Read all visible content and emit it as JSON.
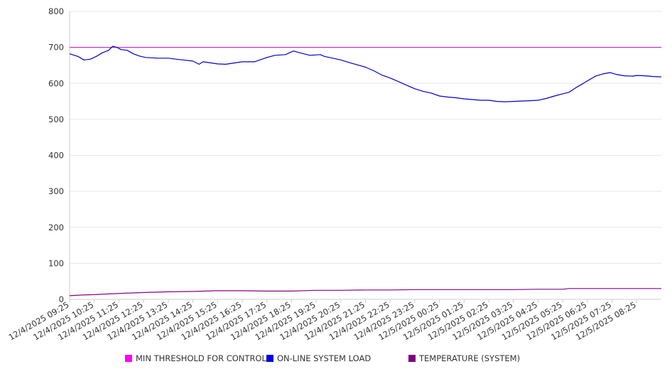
{
  "chart_data": {
    "type": "line",
    "title": "",
    "xlabel": "",
    "ylabel": "",
    "ylim": [
      0,
      800
    ],
    "yticks": [
      0,
      100,
      200,
      300,
      400,
      500,
      600,
      700,
      800
    ],
    "grid": true,
    "legend_position": "bottom",
    "x_tick_labels": [
      "12/4/2025 09:25",
      "12/4/2025 10:25",
      "12/4/2025 11:25",
      "12/4/2025 12:25",
      "12/4/2025 13:25",
      "12/4/2025 14:25",
      "12/4/2025 15:25",
      "12/4/2025 16:25",
      "12/4/2025 17:25",
      "12/4/2025 18:25",
      "12/4/2025 19:25",
      "12/4/2025 20:25",
      "12/4/2025 21:25",
      "12/4/2025 22:25",
      "12/4/2025 23:25",
      "12/5/2025 00:25",
      "12/5/2025 01:25",
      "12/5/2025 02:25",
      "12/5/2025 03:25",
      "12/5/2025 04:25",
      "12/5/2025 05:25",
      "12/5/2025 06:25",
      "12/5/2025 07:25",
      "12/5/2025 08:25"
    ],
    "series": [
      {
        "name": "MIN THRESHOLD FOR CONTROL",
        "color": "#cc33cc",
        "legend_color": "#ff00ff",
        "points": [
          [
            "12/4/2025 09:25",
            700
          ],
          [
            "12/5/2025 09:25",
            700
          ]
        ]
      },
      {
        "name": "ON-LINE SYSTEM LOAD",
        "color": "#0000cc",
        "legend_color": "#0000ee",
        "points": [
          [
            "12/4/2025 09:25",
            682
          ],
          [
            "12/4/2025 09:45",
            675
          ],
          [
            "12/4/2025 10:00",
            665
          ],
          [
            "12/4/2025 10:15",
            667
          ],
          [
            "12/4/2025 10:30",
            675
          ],
          [
            "12/4/2025 10:45",
            685
          ],
          [
            "12/4/2025 11:00",
            692
          ],
          [
            "12/4/2025 11:10",
            703
          ],
          [
            "12/4/2025 11:20",
            700
          ],
          [
            "12/4/2025 11:30",
            694
          ],
          [
            "12/4/2025 11:45",
            692
          ],
          [
            "12/4/2025 12:00",
            682
          ],
          [
            "12/4/2025 12:15",
            676
          ],
          [
            "12/4/2025 12:30",
            672
          ],
          [
            "12/4/2025 13:00",
            670
          ],
          [
            "12/4/2025 13:25",
            670
          ],
          [
            "12/4/2025 13:45",
            667
          ],
          [
            "12/4/2025 14:25",
            662
          ],
          [
            "12/4/2025 14:40",
            653
          ],
          [
            "12/4/2025 14:50",
            660
          ],
          [
            "12/4/2025 15:25",
            654
          ],
          [
            "12/4/2025 15:45",
            653
          ],
          [
            "12/4/2025 16:25",
            660
          ],
          [
            "12/4/2025 16:55",
            660
          ],
          [
            "12/4/2025 17:25",
            672
          ],
          [
            "12/4/2025 17:45",
            678
          ],
          [
            "12/4/2025 18:10",
            680
          ],
          [
            "12/4/2025 18:30",
            690
          ],
          [
            "12/4/2025 18:45",
            685
          ],
          [
            "12/4/2025 19:10",
            678
          ],
          [
            "12/4/2025 19:35",
            680
          ],
          [
            "12/4/2025 19:45",
            675
          ],
          [
            "12/4/2025 20:25",
            665
          ],
          [
            "12/4/2025 20:45",
            658
          ],
          [
            "12/4/2025 21:25",
            645
          ],
          [
            "12/4/2025 21:45",
            635
          ],
          [
            "12/4/2025 22:05",
            623
          ],
          [
            "12/4/2025 22:25",
            615
          ],
          [
            "12/4/2025 22:45",
            605
          ],
          [
            "12/4/2025 23:05",
            595
          ],
          [
            "12/4/2025 23:25",
            585
          ],
          [
            "12/4/2025 23:45",
            578
          ],
          [
            "12/5/2025 00:05",
            573
          ],
          [
            "12/5/2025 00:25",
            565
          ],
          [
            "12/5/2025 00:45",
            562
          ],
          [
            "12/5/2025 01:05",
            560
          ],
          [
            "12/5/2025 01:25",
            557
          ],
          [
            "12/5/2025 01:45",
            555
          ],
          [
            "12/5/2025 02:05",
            553
          ],
          [
            "12/5/2025 02:25",
            553
          ],
          [
            "12/5/2025 02:45",
            550
          ],
          [
            "12/5/2025 03:05",
            549
          ],
          [
            "12/5/2025 03:25",
            550
          ],
          [
            "12/5/2025 03:45",
            551
          ],
          [
            "12/5/2025 04:05",
            552
          ],
          [
            "12/5/2025 04:25",
            553
          ],
          [
            "12/5/2025 04:45",
            558
          ],
          [
            "12/5/2025 05:05",
            565
          ],
          [
            "12/5/2025 05:25",
            571
          ],
          [
            "12/5/2025 05:40",
            575
          ],
          [
            "12/5/2025 06:00",
            590
          ],
          [
            "12/5/2025 06:15",
            600
          ],
          [
            "12/5/2025 06:25",
            607
          ],
          [
            "12/5/2025 06:45",
            620
          ],
          [
            "12/5/2025 07:05",
            627
          ],
          [
            "12/5/2025 07:20",
            630
          ],
          [
            "12/5/2025 07:35",
            625
          ],
          [
            "12/5/2025 07:55",
            621
          ],
          [
            "12/5/2025 08:15",
            620
          ],
          [
            "12/5/2025 08:25",
            622
          ],
          [
            "12/5/2025 08:45",
            621
          ],
          [
            "12/5/2025 09:05",
            619
          ],
          [
            "12/5/2025 09:25",
            618
          ]
        ]
      },
      {
        "name": "TEMPERATURE (SYSTEM)",
        "color": "#880088",
        "legend_color": "#800080",
        "points": [
          [
            "12/4/2025 09:25",
            10
          ],
          [
            "12/4/2025 09:55",
            12
          ],
          [
            "12/4/2025 10:25",
            13
          ],
          [
            "12/4/2025 11:00",
            15
          ],
          [
            "12/4/2025 11:40",
            17
          ],
          [
            "12/4/2025 12:25",
            19
          ],
          [
            "12/4/2025 13:25",
            21
          ],
          [
            "12/4/2025 14:25",
            22
          ],
          [
            "12/4/2025 15:25",
            24
          ],
          [
            "12/4/2025 16:25",
            24
          ],
          [
            "12/4/2025 17:25",
            23
          ],
          [
            "12/4/2025 18:25",
            23
          ],
          [
            "12/4/2025 19:25",
            25
          ],
          [
            "12/4/2025 20:25",
            25
          ],
          [
            "12/4/2025 21:25",
            26
          ],
          [
            "12/4/2025 22:25",
            26
          ],
          [
            "12/4/2025 23:25",
            27
          ],
          [
            "12/5/2025 00:25",
            27
          ],
          [
            "12/5/2025 01:25",
            27
          ],
          [
            "12/5/2025 02:25",
            27
          ],
          [
            "12/5/2025 03:25",
            27
          ],
          [
            "12/5/2025 04:25",
            28
          ],
          [
            "12/5/2025 05:25",
            28
          ],
          [
            "12/5/2025 05:40",
            30
          ],
          [
            "12/5/2025 06:25",
            30
          ],
          [
            "12/5/2025 07:25",
            30
          ],
          [
            "12/5/2025 08:25",
            30
          ],
          [
            "12/5/2025 09:25",
            30
          ]
        ]
      }
    ]
  }
}
